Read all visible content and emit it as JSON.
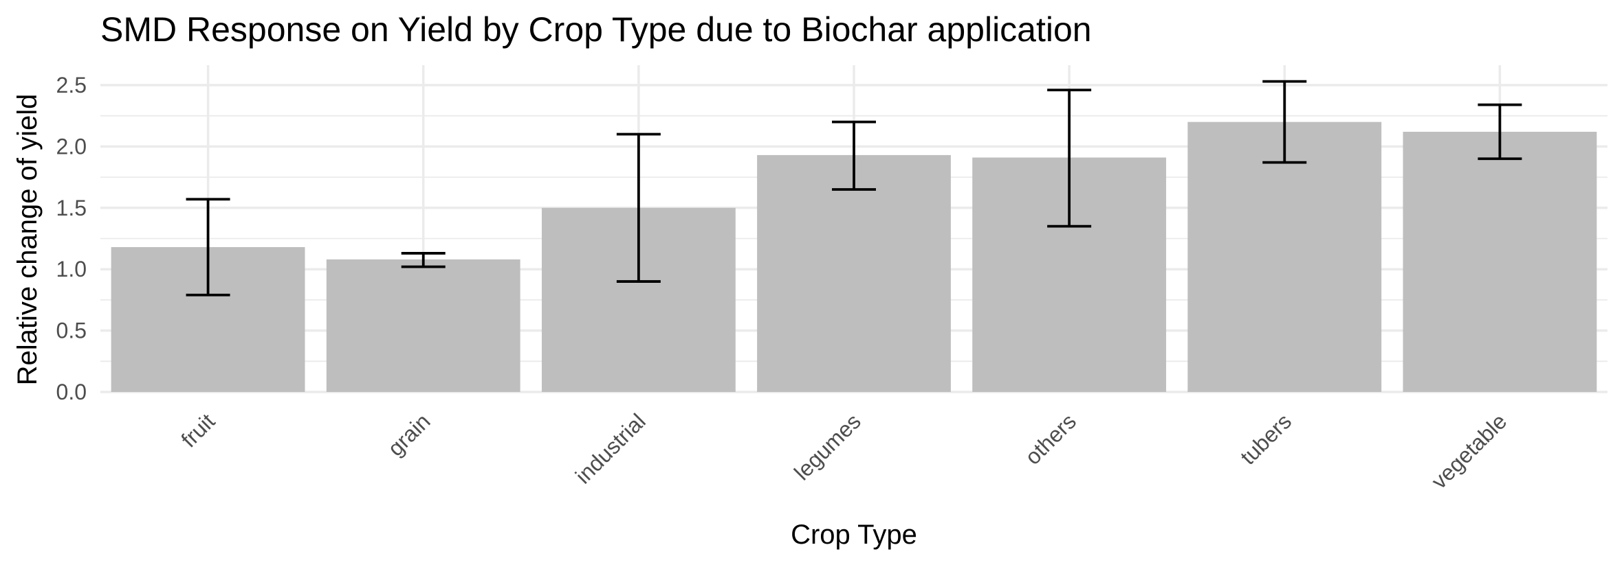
{
  "chart_data": {
    "type": "bar",
    "title": "SMD Response on Yield by Crop Type due to Biochar application",
    "xlabel": "Crop Type",
    "ylabel": "Relative change of yield",
    "categories": [
      "fruit",
      "grain",
      "industrial",
      "legumes",
      "others",
      "tubers",
      "vegetable"
    ],
    "values": [
      1.18,
      1.08,
      1.5,
      1.93,
      1.91,
      2.2,
      2.12
    ],
    "error_low": [
      0.79,
      1.02,
      0.9,
      1.65,
      1.35,
      1.87,
      1.9
    ],
    "error_high": [
      1.57,
      1.13,
      2.1,
      2.2,
      2.46,
      2.53,
      2.34
    ],
    "ylim": [
      0,
      2.65
    ],
    "yticks": [
      "0.0",
      "0.5",
      "1.0",
      "1.5",
      "2.0",
      "2.5"
    ],
    "grid": true,
    "bar_color": "#bebebe",
    "error_color": "#000000"
  }
}
